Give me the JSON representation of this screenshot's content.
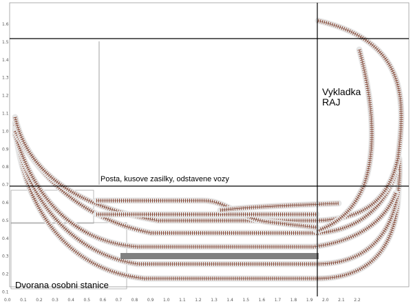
{
  "labels": {
    "vykladka": "Vykladka",
    "raj": "RAJ",
    "posta": "Posta, kusove zasilky, odstavene vozy",
    "dvorana": "Dvorana osobni stanice"
  },
  "x_ticks": [
    "0.0",
    "0.1",
    "0.2",
    "0.3",
    "0.4",
    "0.5",
    "0.6",
    "0.7",
    "0.8",
    "0.9",
    "1.0",
    "1.1",
    "1.2",
    "1.3",
    "1.4",
    "1.5",
    "1.6",
    "1.7",
    "1.8",
    "1.9",
    "2.0",
    "2.1",
    "2.2"
  ],
  "y_ticks": [
    "1.6",
    "1.5",
    "1.4",
    "1.3",
    "1.2",
    "1.1",
    "1.0",
    "0.9",
    "0.8",
    "0.7",
    "0.6",
    "0.5",
    "0.4",
    "0.3",
    "0.2",
    "0.1"
  ],
  "colors": {
    "track": "#8b4a36",
    "platform": "#808080",
    "grid": "#000000"
  }
}
